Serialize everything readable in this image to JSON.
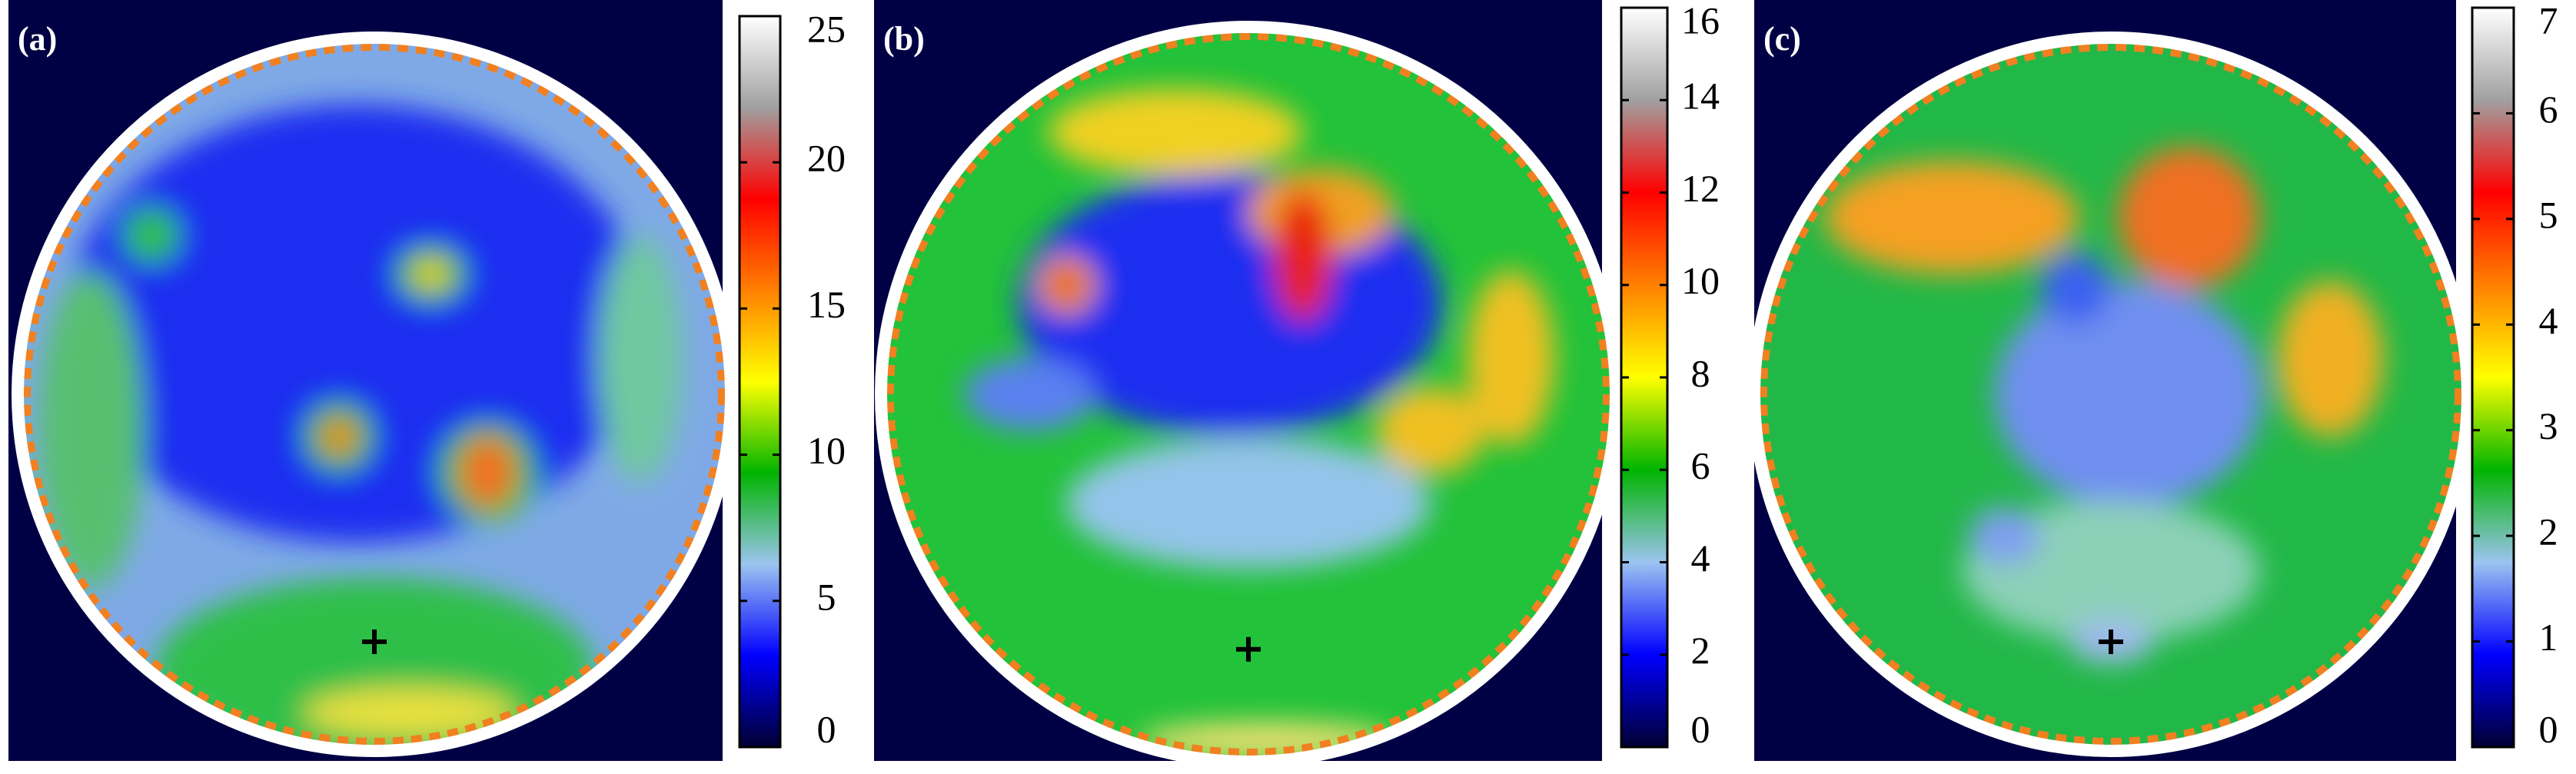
{
  "chart_data": [
    {
      "type": "heatmap",
      "label": "(a)",
      "zlim": [
        0,
        25
      ],
      "zticks": [
        0,
        5,
        10,
        15,
        20,
        25
      ],
      "colormap": [
        "#000033",
        "#0000ff",
        "#9cc4f0",
        "#00b400",
        "#ffff00",
        "#ff8000",
        "#ff0000",
        "#a0a0a0",
        "#ffffff"
      ]
    },
    {
      "type": "heatmap",
      "label": "(b)",
      "zlim": [
        0,
        16
      ],
      "zticks": [
        0,
        2,
        4,
        6,
        8,
        10,
        12,
        14,
        16
      ],
      "colormap": [
        "#000033",
        "#0000ff",
        "#9cc4f0",
        "#00b400",
        "#ffff00",
        "#ff8000",
        "#ff0000",
        "#a0a0a0",
        "#ffffff"
      ]
    },
    {
      "type": "heatmap",
      "label": "(c)",
      "zlim": [
        0,
        7
      ],
      "zticks": [
        0,
        1,
        2,
        3,
        4,
        5,
        6,
        7
      ],
      "colormap": [
        "#000033",
        "#0000ff",
        "#9cc4f0",
        "#00b400",
        "#ffff00",
        "#ff8000",
        "#ff0000",
        "#a0a0a0",
        "#ffffff"
      ]
    }
  ]
}
